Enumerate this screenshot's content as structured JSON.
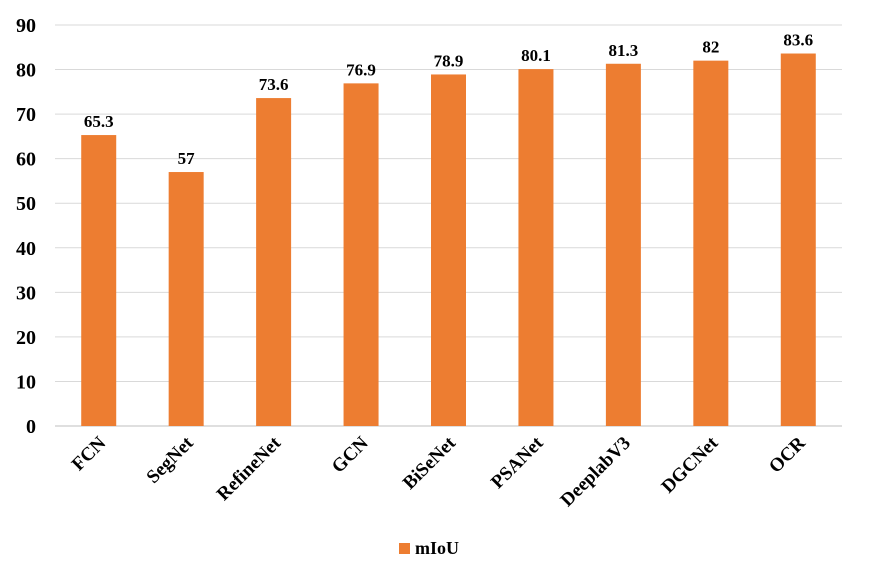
{
  "chart_data": {
    "type": "bar",
    "categories": [
      "FCN",
      "SegNet",
      "RefineNet",
      "GCN",
      "BiSeNet",
      "PSANet",
      "DeeplabV3",
      "DGCNet",
      "OCR"
    ],
    "series": [
      {
        "name": "mIoU",
        "values": [
          65.3,
          57,
          73.6,
          76.9,
          78.9,
          80.1,
          81.3,
          82,
          83.6
        ],
        "labels": [
          "65.3",
          "57",
          "73.6",
          "76.9",
          "78.9",
          "80.1",
          "81.3",
          "82",
          "83.6"
        ],
        "color": "#ED7D31"
      }
    ],
    "ylim": [
      0,
      90
    ],
    "yticks": [
      0,
      10,
      20,
      30,
      40,
      50,
      60,
      70,
      80,
      90
    ],
    "grid": true,
    "legend_position": "bottom-center"
  }
}
